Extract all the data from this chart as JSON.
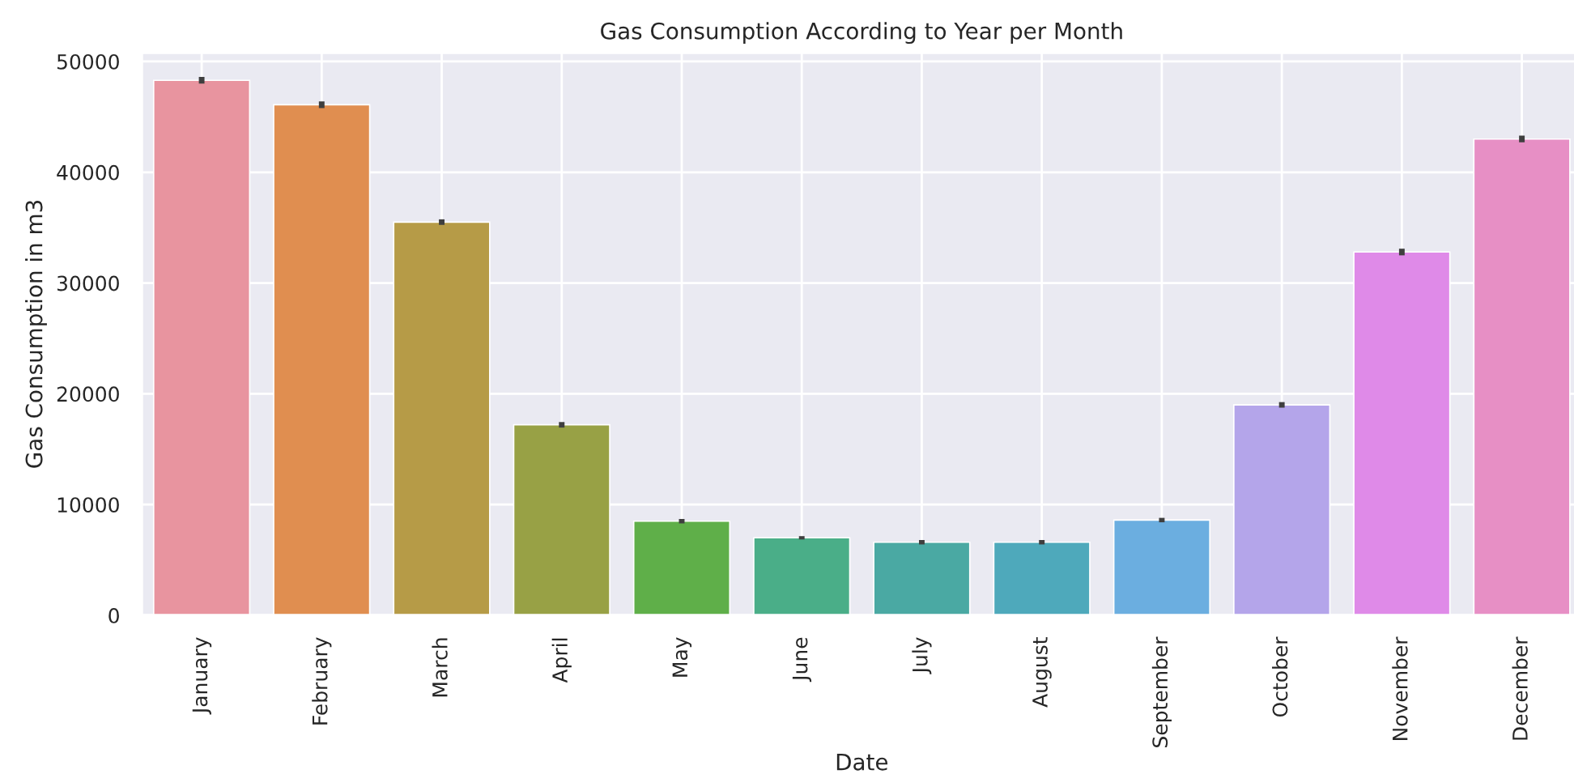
{
  "chart_data": {
    "type": "bar",
    "title": "Gas Consumption According to Year per Month",
    "xlabel": "Date",
    "ylabel": "Gas Consumption in m3",
    "categories": [
      "January",
      "February",
      "March",
      "April",
      "May",
      "June",
      "July",
      "August",
      "September",
      "October",
      "November",
      "December"
    ],
    "values": [
      48300,
      46100,
      35500,
      17200,
      8500,
      7000,
      6600,
      6600,
      8600,
      19000,
      32800,
      43000
    ],
    "errors": [
      300,
      300,
      250,
      250,
      200,
      150,
      200,
      200,
      200,
      250,
      300,
      300
    ],
    "colors": [
      "#e8949f",
      "#e08e50",
      "#b69b47",
      "#98a145",
      "#5faf49",
      "#4aae88",
      "#4aa9a3",
      "#4ea9bb",
      "#6baee0",
      "#b4a5ea",
      "#df8ae8",
      "#e78fc5"
    ],
    "ylim": [
      0,
      50800
    ],
    "yticks": [
      0,
      10000,
      20000,
      30000,
      40000,
      50000
    ],
    "grid": true
  }
}
